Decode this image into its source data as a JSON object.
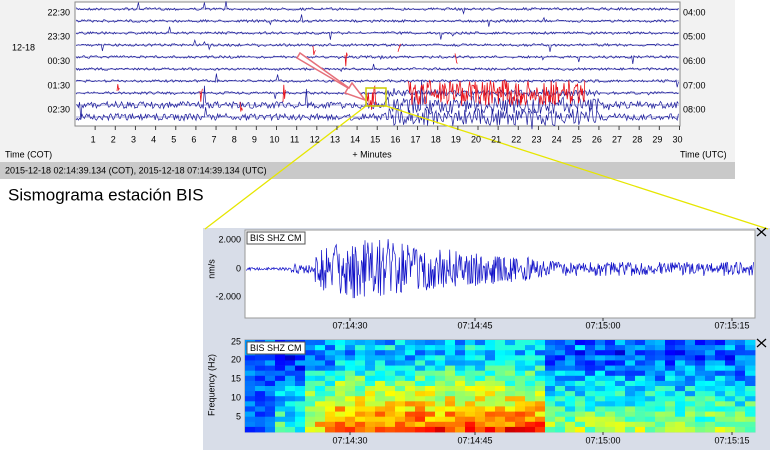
{
  "helicorder": {
    "date": "12-18",
    "left_times": [
      "22:30",
      "23:30",
      "00:30",
      "01:30",
      "02:30"
    ],
    "right_times": [
      "04:00",
      "05:00",
      "06:00",
      "07:00",
      "08:00"
    ],
    "minutes": [
      "1",
      "2",
      "3",
      "4",
      "5",
      "6",
      "7",
      "8",
      "9",
      "10",
      "11",
      "12",
      "13",
      "14",
      "15",
      "16",
      "17",
      "18",
      "19",
      "20",
      "21",
      "22",
      "23",
      "24",
      "25",
      "26",
      "27",
      "28",
      "29",
      "30"
    ],
    "x_label_left": "Time (COT)",
    "x_label_center": "+ Minutes",
    "x_label_right": "Time (UTC)"
  },
  "status": "2015-12-18 02:14:39.134 (COT), 2015-12-18 07:14:39.134 (UTC)",
  "caption": "Sismograma estación BIS",
  "waveform": {
    "station": "BIS SHZ CM",
    "y_label": "nm/s",
    "y_ticks": [
      "2.000",
      "0",
      "-2.000"
    ],
    "x_ticks": [
      "07:14:30",
      "07:14:45",
      "07:15:00",
      "07:15:15"
    ]
  },
  "spectrogram": {
    "station": "BIS SHZ CM",
    "y_label": "Frequency (Hz)",
    "y_ticks": [
      "25",
      "20",
      "15",
      "10",
      "5"
    ],
    "x_ticks": [
      "07:14:30",
      "07:14:45",
      "07:15:00",
      "07:15:15"
    ]
  }
}
